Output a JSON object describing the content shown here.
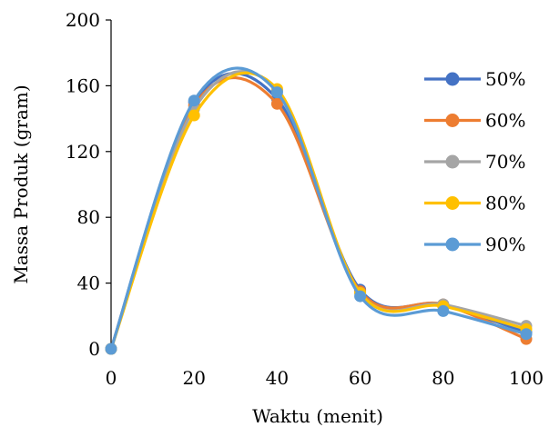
{
  "chart_data": {
    "type": "line",
    "xlabel": "Waktu (menit)",
    "ylabel": "Massa Produk (gram)",
    "x": [
      0,
      20,
      40,
      60,
      80,
      100
    ],
    "xlim": [
      0,
      100
    ],
    "ylim": [
      0,
      200
    ],
    "xticks": [
      0,
      20,
      40,
      60,
      80,
      100
    ],
    "yticks": [
      0,
      40,
      80,
      120,
      160,
      200
    ],
    "smooth": true,
    "markers": true,
    "grid": false,
    "legend_position": "right",
    "series": [
      {
        "name": "50%",
        "color": "#4472C4",
        "values": [
          0,
          150,
          152,
          36,
          27,
          10
        ]
      },
      {
        "name": "60%",
        "color": "#ED7D31",
        "values": [
          0,
          148,
          149,
          35,
          27,
          6
        ]
      },
      {
        "name": "70%",
        "color": "#A5A5A5",
        "values": [
          0,
          146,
          157,
          34,
          27,
          14
        ]
      },
      {
        "name": "80%",
        "color": "#FFC000",
        "values": [
          0,
          142,
          158,
          34,
          26,
          12
        ]
      },
      {
        "name": "90%",
        "color": "#5B9BD5",
        "values": [
          0,
          151,
          156,
          32,
          23,
          9
        ]
      }
    ]
  }
}
